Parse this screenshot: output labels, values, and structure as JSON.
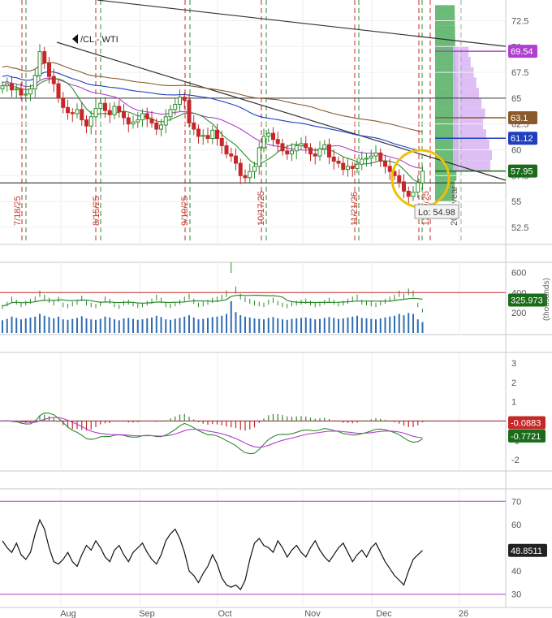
{
  "chart_data": {
    "type": "candlestick",
    "symbol_label": "/CL - WTI",
    "colors": {
      "up": "#2e8b2e",
      "down": "#c62828",
      "ma_brown": "#8b5a2b",
      "ma_blue": "#1f3fbf",
      "ma_purple": "#b040d0",
      "ma_green": "#2e8b2e",
      "trendline": "#333333",
      "highlight_circle": "#f0c000",
      "volume_bar": "#2f6db5",
      "volume_profile": "#3aa34a",
      "volume_profile_upper": "#d9b8f5"
    },
    "x_axis": {
      "labels": [
        "Aug",
        "Sep",
        "Oct",
        "Nov",
        "Dec",
        "26"
      ]
    },
    "event_labels": [
      "7/18/25",
      "8/15/25",
      "9/19/25",
      "10/17/25",
      "11/21/25",
      "12/19/25",
      "2026 year"
    ],
    "price_panel": {
      "y_ticks": [
        "72.5",
        "70",
        "67.5",
        "65",
        "62.5",
        "60",
        "57.5",
        "55",
        "52.5"
      ],
      "ylim": [
        51,
        74.5
      ],
      "support_level": 56.8,
      "level_line": 65,
      "badges": [
        {
          "value": "69.54",
          "color": "#b040d0"
        },
        {
          "value": "63.1",
          "color": "#8b5a2b"
        },
        {
          "value": "61.12",
          "color": "#1f3fbf"
        },
        {
          "value": "57.95",
          "color": "#1a6b1a"
        }
      ],
      "low_label": "Lo: 54.98",
      "closes": [
        66.2,
        66.4,
        65.8,
        65.9,
        65.3,
        65.4,
        65.9,
        67.2,
        69.5,
        68.4,
        67.1,
        66.4,
        65.0,
        64.1,
        63.6,
        63.5,
        63.9,
        62.9,
        62.3,
        63.2,
        64.0,
        64.5,
        63.8,
        63.4,
        64.2,
        63.7,
        63.1,
        62.5,
        62.7,
        62.9,
        63.5,
        63.0,
        62.6,
        62.0,
        62.4,
        63.2,
        63.9,
        64.4,
        65.1,
        64.8,
        62.6,
        62.0,
        61.3,
        61.4,
        61.1,
        61.9,
        61.1,
        60.4,
        59.6,
        59.4,
        58.7,
        57.5,
        57.3,
        57.9,
        58.4,
        60.2,
        61.3,
        61.6,
        61.0,
        60.6,
        59.9,
        59.6,
        59.9,
        60.4,
        60.6,
        60.2,
        59.6,
        59.4,
        60.1,
        60.5,
        59.3,
        58.9,
        58.7,
        58.1,
        58.4,
        58.2,
        58.6,
        59.1,
        59.2,
        59.4,
        59.7,
        58.9,
        58.4,
        57.9,
        57.5,
        56.9,
        56.0,
        55.5,
        55.9,
        56.8,
        57.95
      ],
      "volume_profile_bins": [
        {
          "price": 73.5,
          "volume": 20
        },
        {
          "price": 72.5,
          "volume": 22
        },
        {
          "price": 71.5,
          "volume": 24
        },
        {
          "price": 70.5,
          "volume": 26
        },
        {
          "price": 69.5,
          "volume": 30
        },
        {
          "price": 68.5,
          "volume": 34
        },
        {
          "price": 67.5,
          "volume": 40
        },
        {
          "price": 66.5,
          "volume": 45
        },
        {
          "price": 65.5,
          "volume": 50
        },
        {
          "price": 64.5,
          "volume": 55
        },
        {
          "price": 63.5,
          "volume": 62
        },
        {
          "price": 62.5,
          "volume": 58
        },
        {
          "price": 61.5,
          "volume": 64
        },
        {
          "price": 60.5,
          "volume": 70
        },
        {
          "price": 59.5,
          "volume": 75
        },
        {
          "price": 58.5,
          "volume": 72
        },
        {
          "price": 57.5,
          "volume": 40
        },
        {
          "price": 56.5,
          "volume": 20
        },
        {
          "price": 55.5,
          "volume": 10
        }
      ]
    },
    "volume_panel": {
      "y_ticks": [
        "600",
        "400",
        "200"
      ],
      "ylim": [
        0,
        700
      ],
      "unit_label": "(thousands)",
      "avg_badge": "325.973",
      "reference_level": 400,
      "volumes": [
        280,
        310,
        360,
        330,
        300,
        320,
        340,
        360,
        420,
        380,
        350,
        320,
        360,
        300,
        290,
        310,
        330,
        370,
        320,
        300,
        290,
        310,
        360,
        340,
        300,
        280,
        320,
        330,
        310,
        290,
        300,
        320,
        340,
        380,
        350,
        300,
        290,
        310,
        330,
        360,
        390,
        340,
        300,
        310,
        330,
        350,
        360,
        380,
        420,
        700,
        460,
        390,
        360,
        340,
        320,
        310,
        300,
        330,
        350,
        320,
        300,
        290,
        310,
        320,
        330,
        340,
        320,
        300,
        310,
        330,
        350,
        330,
        310,
        320,
        340,
        360,
        380,
        330,
        320,
        310,
        300,
        320,
        340,
        360,
        380,
        420,
        390,
        440,
        420,
        300,
        240
      ]
    },
    "macd_panel": {
      "y_ticks": [
        "3",
        "2",
        "1",
        "0",
        "-1",
        "-2"
      ],
      "ylim": [
        -2.5,
        3.5
      ],
      "badges": [
        {
          "value": "-0.0883",
          "color": "#c62828"
        },
        {
          "value": "-0.7721",
          "color": "#1a6b1a"
        }
      ]
    },
    "rsi_panel": {
      "y_ticks": [
        "70",
        "60",
        "50",
        "40",
        "30"
      ],
      "ylim": [
        25,
        75
      ],
      "overbought": 70,
      "oversold": 30,
      "badge": "48.8511",
      "values": [
        53,
        50,
        48,
        52,
        47,
        45,
        48,
        56,
        62,
        58,
        50,
        44,
        43,
        45,
        48,
        44,
        42,
        47,
        51,
        49,
        53,
        50,
        46,
        44,
        49,
        51,
        47,
        44,
        48,
        50,
        52,
        48,
        45,
        43,
        47,
        53,
        56,
        58,
        54,
        48,
        40,
        38,
        35,
        39,
        42,
        47,
        43,
        37,
        34,
        33,
        34,
        32,
        36,
        45,
        52,
        54,
        51,
        50,
        48,
        53,
        50,
        46,
        49,
        51,
        48,
        46,
        50,
        53,
        49,
        46,
        44,
        47,
        50,
        52,
        48,
        44,
        47,
        49,
        46,
        50,
        52,
        48,
        44,
        41,
        38,
        36,
        34,
        40,
        45,
        47,
        48.85
      ]
    }
  }
}
